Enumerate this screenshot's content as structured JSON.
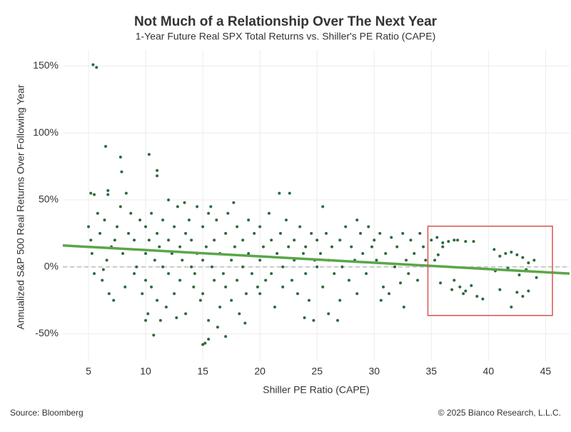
{
  "chart_data": {
    "type": "scatter",
    "title": "Not Much of a Relationship Over The Next Year",
    "subtitle": "1-Year Future Real SPX Total Returns vs. Shiller's PE Ratio (CAPE)",
    "x_label": "Shiller PE Ratio (CAPE)",
    "y_label": "Annualized S&P 500 Real Returns Over Following Year",
    "source": "Source: Bloomberg",
    "copyright": "© 2025 Bianco Research, L.L.C.",
    "xlim": [
      2.75,
      47.1
    ],
    "ylim": [
      -70,
      162
    ],
    "xticks": [
      5,
      10,
      15,
      20,
      25,
      30,
      35,
      40,
      45
    ],
    "yticks": [
      {
        "value": -50,
        "label": "-50%"
      },
      {
        "value": 0,
        "label": "0%"
      },
      {
        "value": 50,
        "label": "50%"
      },
      {
        "value": 100,
        "label": "100%"
      },
      {
        "value": 150,
        "label": "150%"
      }
    ],
    "grid": true,
    "hline": 0,
    "trend": {
      "x": [
        2.75,
        47.1
      ],
      "y": [
        16,
        -5
      ],
      "color": "#5aa64a"
    },
    "highlight": {
      "xlim": [
        34.7,
        45.6
      ],
      "ylim": [
        -36.3,
        30.4
      ],
      "color": "#d9534f"
    },
    "series": [
      {
        "color": "#2d6a3a",
        "x": [
          5.4,
          5.7,
          6.5,
          7.8,
          7.9,
          10.3,
          11,
          11,
          5.2,
          5.5,
          6.7,
          6.7,
          15.2,
          15.5,
          15,
          17,
          10.7,
          10,
          35,
          35.5,
          36,
          36.5,
          37,
          37.3,
          38,
          38.7,
          35.3,
          35.6,
          36,
          37,
          37.5,
          38,
          38.5,
          39,
          39.5,
          35.8,
          36.8,
          37.8,
          40.5,
          41,
          41.5,
          42,
          42.5,
          43,
          43.5,
          44,
          42,
          42.5,
          43,
          43.5,
          42.7,
          44.2,
          40.6,
          41,
          41.7,
          43.3,
          5,
          5.2,
          5.3,
          5.5,
          5.8,
          6,
          6.2,
          6.4,
          6.6,
          6.8,
          7,
          7.2,
          7.5,
          7.8,
          8,
          8.2,
          8.5,
          8.7,
          9,
          9,
          9.2,
          9.5,
          9.7,
          8.3,
          7.3,
          6.3,
          10,
          10,
          10,
          10.3,
          10.5,
          10.5,
          10.8,
          11,
          11,
          11.2,
          11.5,
          11.5,
          11.8,
          12,
          12,
          12,
          12.3,
          12.5,
          12.5,
          12.8,
          13,
          13,
          13.2,
          13.5,
          13.5,
          13.8,
          14,
          14,
          14.2,
          14.5,
          14.5,
          14.8,
          10.2,
          11.3,
          12.7,
          13.4,
          14.3,
          15,
          15,
          15,
          15.3,
          15.5,
          15.5,
          15.8,
          16,
          16,
          16.2,
          16.5,
          16.5,
          16.8,
          17,
          17,
          17.2,
          17.5,
          17.5,
          17.8,
          18,
          18,
          18.2,
          18.5,
          18.5,
          18.8,
          19,
          19,
          19.3,
          19.5,
          19.8,
          16.3,
          18.7,
          15.7,
          17.7,
          20,
          20,
          20,
          20.3,
          20.5,
          20.8,
          21,
          21,
          21.3,
          21.5,
          21.8,
          22,
          22,
          22.3,
          22.5,
          22.8,
          23,
          23,
          23.3,
          23.5,
          23.8,
          24,
          24,
          24.3,
          24.5,
          24.8,
          21.7,
          22.6,
          24.7,
          23.9,
          25,
          25,
          25.3,
          25.5,
          25.8,
          26,
          26,
          26.3,
          26.5,
          26.8,
          27,
          27.2,
          27.5,
          27.8,
          28,
          28.3,
          28.5,
          28.8,
          29,
          29.3,
          29.5,
          29.8,
          25.5,
          27,
          28.5,
          30,
          30.2,
          30.5,
          30.8,
          31,
          31.3,
          31.5,
          31.8,
          32,
          32.3,
          32.5,
          32.8,
          33,
          33.2,
          33.5,
          33.8,
          34,
          34.3,
          34.5,
          30.6,
          32.6
        ],
        "values": [
          151,
          149,
          90,
          82,
          71,
          84,
          72,
          68,
          55,
          54,
          57,
          54,
          -57,
          -54,
          -58,
          -52,
          -51,
          -40,
          20,
          22,
          18,
          19,
          20,
          20,
          19,
          19,
          5,
          9,
          15,
          -10,
          -15,
          -18,
          -14,
          -22,
          -24,
          -12,
          -17,
          -20,
          13,
          8,
          10,
          11,
          9,
          7,
          3,
          5,
          -30,
          -19,
          -22,
          -18,
          -6,
          -8,
          -3,
          -17,
          -1,
          -2,
          30,
          20,
          10,
          -5,
          40,
          25,
          -10,
          35,
          5,
          -20,
          15,
          -25,
          30,
          45,
          10,
          -15,
          25,
          40,
          20,
          -5,
          0,
          35,
          -20,
          55,
          20,
          -2,
          30,
          10,
          -10,
          20,
          40,
          -15,
          5,
          25,
          -25,
          15,
          0,
          35,
          -30,
          50,
          20,
          -5,
          10,
          30,
          -20,
          45,
          15,
          -10,
          5,
          25,
          -35,
          35,
          0,
          20,
          -15,
          45,
          10,
          -25,
          -35,
          -40,
          -38,
          48,
          -5,
          30,
          5,
          -20,
          15,
          -40,
          40,
          0,
          20,
          -10,
          35,
          10,
          -30,
          -5,
          25,
          -15,
          40,
          5,
          -25,
          15,
          30,
          -10,
          -35,
          20,
          0,
          -20,
          10,
          35,
          -5,
          25,
          -15,
          -45,
          -42,
          45,
          48,
          30,
          5,
          -20,
          15,
          -10,
          40,
          20,
          -5,
          -30,
          10,
          25,
          0,
          -15,
          35,
          15,
          -10,
          20,
          5,
          -20,
          30,
          10,
          -5,
          15,
          -25,
          25,
          5,
          55,
          55,
          -40,
          -38,
          20,
          0,
          10,
          -15,
          25,
          5,
          -35,
          15,
          -5,
          -40,
          20,
          0,
          30,
          -10,
          15,
          5,
          -20,
          25,
          10,
          -5,
          30,
          15,
          45,
          -25,
          35,
          20,
          5,
          25,
          -15,
          10,
          -20,
          22,
          0,
          15,
          -12,
          25,
          5,
          -5,
          20,
          10,
          -10,
          25,
          15,
          5,
          -25,
          -30
        ]
      }
    ]
  }
}
